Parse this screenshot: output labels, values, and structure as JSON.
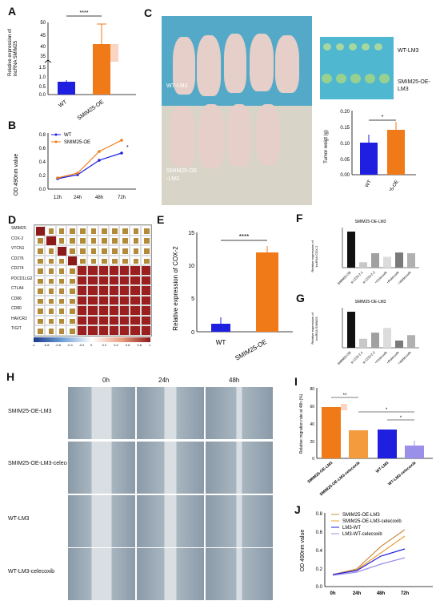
{
  "panels": {
    "A": "A",
    "B": "B",
    "C": "C",
    "D": "D",
    "E": "E",
    "F": "F",
    "G": "G",
    "H": "H",
    "I": "I",
    "J": "J"
  },
  "colors": {
    "blue": "#1f1fe0",
    "orange": "#f07a18",
    "tan": "#c8914a",
    "lavender": "#9a90ea",
    "darkred": "#8c1a1a",
    "black": "#111111",
    "gray": "#c8c8c8"
  },
  "panelA": {
    "ylabel_line1": "Relative expression of",
    "ylabel_line2": "lncRNA SMIM25",
    "sig": "****",
    "yticks_top": [
      "50",
      "45",
      "40",
      "35"
    ],
    "yticks_bottom": [
      "1.5",
      "1.0",
      "0.5",
      "0.0"
    ],
    "categories": [
      "WT",
      "SMIM25-OE"
    ],
    "values": [
      1.0,
      37
    ]
  },
  "panelB": {
    "ylabel": "OD 490nm value",
    "xticks": [
      "12h",
      "24h",
      "48h",
      "72h"
    ],
    "yticks": [
      "0.8",
      "0.6",
      "0.4",
      "0.2",
      "0.0"
    ],
    "legend": [
      "WT",
      "SMIM25-OE"
    ],
    "sig": "*"
  },
  "panelC": {
    "label_wt": "WT-LM3",
    "label_oe_line1": "SMIM25-OE",
    "label_oe_line2": "-LM3",
    "tumor_wt": "WT-LM3",
    "tumor_oe_line1": "SMIM25-OE-",
    "tumor_oe_line2": "LM3",
    "bar_ylabel": "Tumor weigt (g)",
    "yticks": [
      "0.20",
      "0.15",
      "0.10",
      "0.05",
      "0.00"
    ],
    "categories": [
      "WT",
      "SMIM25-OE"
    ],
    "values": [
      0.1,
      0.14
    ],
    "sig": "*"
  },
  "panelD": {
    "rows": [
      "SMIM25",
      "COX-2",
      "VTCN1",
      "CD276",
      "CD274",
      "PDCD1LG2",
      "CTLA4",
      "CD86",
      "CD80",
      "HAVCR2",
      "TIGIT"
    ],
    "scale": [
      "-1",
      "-0.8",
      "-0.6",
      "-0.4",
      "-0.2",
      "0",
      "0.2",
      "0.4",
      "0.6",
      "0.8",
      "1"
    ]
  },
  "panelE": {
    "ylabel": "Relative expression of COX-2",
    "yticks": [
      "15",
      "10",
      "5",
      "0"
    ],
    "categories": [
      "WT",
      "SMIM25-OE"
    ],
    "values": [
      1.2,
      12
    ],
    "sig": "****"
  },
  "panelF": {
    "title": "SMIM25-OE-LM3",
    "ylabel_line1": "Relative expression of",
    "ylabel_line2": "lncRNA COX-2",
    "categories": [
      "SMIM25-OE",
      "si-COX-2-1",
      "si-COX-2-2",
      "+Celecoxib",
      "+Rofecoxib",
      "+Valdecoxib"
    ],
    "values": [
      1.0,
      0.15,
      0.4,
      0.3,
      0.42,
      0.4
    ]
  },
  "panelG": {
    "title": "SMIM25-OE-LM3",
    "ylabel_line1": "Relative expression of",
    "ylabel_line2": "lncRNA SMIM25",
    "categories": [
      "SMIM25-OE",
      "si-COX-2-1",
      "si-COX-2-2",
      "+Celecoxib",
      "+Rofecoxib",
      "+Valdecoxib"
    ],
    "values": [
      1.0,
      0.25,
      0.42,
      0.55,
      0.2,
      0.35
    ]
  },
  "panelH": {
    "cols": [
      "0h",
      "24h",
      "48h"
    ],
    "rows": [
      "SMIM25-OE-LM3",
      "SMIM25-OE-LM3-celecoxib",
      "WT-LM3",
      "WT-LM3-celecoxib"
    ]
  },
  "panelI": {
    "ylabel": "Relative migration rate at 48h (%)",
    "yticks": [
      "80",
      "60",
      "40",
      "20",
      "0"
    ],
    "categories": [
      "SMIM25-OE-LM3",
      "SMIM25-OE-LM3-celecoxib",
      "WT-LM3",
      "WT-LM3-celecoxib"
    ],
    "values": [
      58,
      32,
      33,
      15
    ],
    "sig": [
      "**",
      "*",
      "*"
    ]
  },
  "panelJ": {
    "ylabel": "OD 490nm value",
    "xticks": [
      "0h",
      "24h",
      "48h",
      "72h"
    ],
    "yticks": [
      "0.8",
      "0.6",
      "0.4",
      "0.2",
      "0.0"
    ],
    "legend": [
      "SMIM25-OE-LM3",
      "SMIM25-OE-LM3-celecoxib",
      "LM3-WT",
      "LM3-WT-celecoxib"
    ]
  },
  "chart_data": [
    {
      "type": "bar",
      "title": "",
      "categories": [
        "WT",
        "SMIM25-OE"
      ],
      "values": [
        1.0,
        37
      ],
      "ylabel": "Relative expression of lncRNA SMIM25"
    },
    {
      "type": "line",
      "x": [
        "12h",
        "24h",
        "48h",
        "72h"
      ],
      "ylabel": "OD 490nm value",
      "ylim": [
        0,
        0.8
      ],
      "series": [
        {
          "name": "WT",
          "values": [
            0.15,
            0.2,
            0.42,
            0.52
          ]
        },
        {
          "name": "SMIM25-OE",
          "values": [
            0.16,
            0.23,
            0.55,
            0.72
          ]
        }
      ]
    },
    {
      "type": "bar",
      "categories": [
        "WT",
        "SMIM25-OE"
      ],
      "values": [
        0.1,
        0.14
      ],
      "ylabel": "Tumor weigt (g)",
      "ylim": [
        0,
        0.2
      ]
    },
    {
      "type": "bar",
      "categories": [
        "WT",
        "SMIM25-OE"
      ],
      "values": [
        1.2,
        12
      ],
      "ylabel": "Relative expression of COX-2",
      "ylim": [
        0,
        15
      ]
    },
    {
      "type": "bar",
      "title": "SMIM25-OE-LM3",
      "categories": [
        "SMIM25-OE",
        "si-COX-2-1",
        "si-COX-2-2",
        "+Celecoxib",
        "+Rofecoxib",
        "+Valdecoxib"
      ],
      "values": [
        1.0,
        0.15,
        0.4,
        0.3,
        0.42,
        0.4
      ]
    },
    {
      "type": "bar",
      "title": "SMIM25-OE-LM3",
      "categories": [
        "SMIM25-OE",
        "si-COX-2-1",
        "si-COX-2-2",
        "+Celecoxib",
        "+Rofecoxib",
        "+Valdecoxib"
      ],
      "values": [
        1.0,
        0.25,
        0.42,
        0.55,
        0.2,
        0.35
      ]
    },
    {
      "type": "bar",
      "categories": [
        "SMIM25-OE-LM3",
        "SMIM25-OE-LM3-celecoxib",
        "WT-LM3",
        "WT-LM3-celecoxib"
      ],
      "values": [
        58,
        32,
        33,
        15
      ],
      "ylabel": "Relative migration rate at 48h (%)",
      "ylim": [
        0,
        80
      ]
    },
    {
      "type": "line",
      "x": [
        "0h",
        "24h",
        "48h",
        "72h"
      ],
      "ylabel": "OD 490nm value",
      "ylim": [
        0,
        0.8
      ],
      "series": [
        {
          "name": "SMIM25-OE-LM3",
          "values": [
            0.13,
            0.2,
            0.45,
            0.62
          ]
        },
        {
          "name": "SMIM25-OE-LM3-celecoxib",
          "values": [
            0.13,
            0.19,
            0.38,
            0.55
          ]
        },
        {
          "name": "LM3-WT",
          "values": [
            0.13,
            0.18,
            0.35,
            0.42
          ]
        },
        {
          "name": "LM3-WT-celecoxib",
          "values": [
            0.12,
            0.16,
            0.26,
            0.32
          ]
        }
      ]
    }
  ]
}
